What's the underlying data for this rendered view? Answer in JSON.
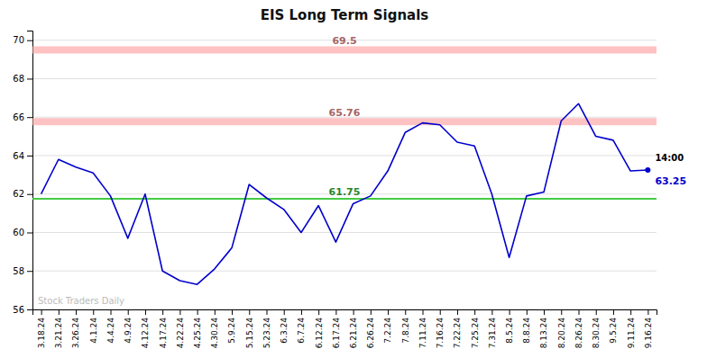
{
  "chart_data": {
    "type": "line",
    "title": "EIS Long Term Signals",
    "categories": [
      "3.18.24",
      "3.21.24",
      "3.26.24",
      "4.1.24",
      "4.4.24",
      "4.9.24",
      "4.12.24",
      "4.17.24",
      "4.22.24",
      "4.25.24",
      "4.30.24",
      "5.9.24",
      "5.15.24",
      "5.23.24",
      "6.3.24",
      "6.7.24",
      "6.12.24",
      "6.17.24",
      "6.21.24",
      "6.26.24",
      "7.2.24",
      "7.8.24",
      "7.11.24",
      "7.16.24",
      "7.22.24",
      "7.25.24",
      "7.31.24",
      "8.5.24",
      "8.8.24",
      "8.13.24",
      "8.20.24",
      "8.26.24",
      "8.30.24",
      "9.5.24",
      "9.11.24",
      "9.16.24"
    ],
    "values": [
      62.0,
      63.8,
      63.4,
      63.1,
      61.9,
      59.7,
      62.0,
      58.0,
      57.5,
      57.3,
      58.1,
      59.2,
      62.5,
      61.8,
      61.2,
      60.0,
      61.4,
      59.5,
      61.5,
      61.9,
      63.2,
      65.2,
      65.7,
      65.6,
      64.7,
      64.5,
      62.0,
      58.7,
      61.9,
      62.1,
      65.8,
      66.7,
      65.0,
      64.8,
      63.2,
      63.25
    ],
    "color": "#0000cc",
    "ylim": [
      56,
      70.5
    ],
    "yticks": [
      56,
      58,
      60,
      62,
      64,
      66,
      68,
      70
    ],
    "grid": true,
    "hlines": [
      {
        "value": 69.5,
        "label": "69.5",
        "color": "#ff9999",
        "line_style": "band"
      },
      {
        "value": 65.76,
        "label": "65.76",
        "color": "#ff9999",
        "line_style": "band"
      },
      {
        "value": 61.75,
        "label": "61.75",
        "color": "#44cc44",
        "line_style": "solid"
      }
    ],
    "last_point_labels": [
      {
        "text": "14:00"
      },
      {
        "text": "63.25",
        "value": 63.25
      }
    ],
    "watermark": "Stock Traders Daily"
  }
}
